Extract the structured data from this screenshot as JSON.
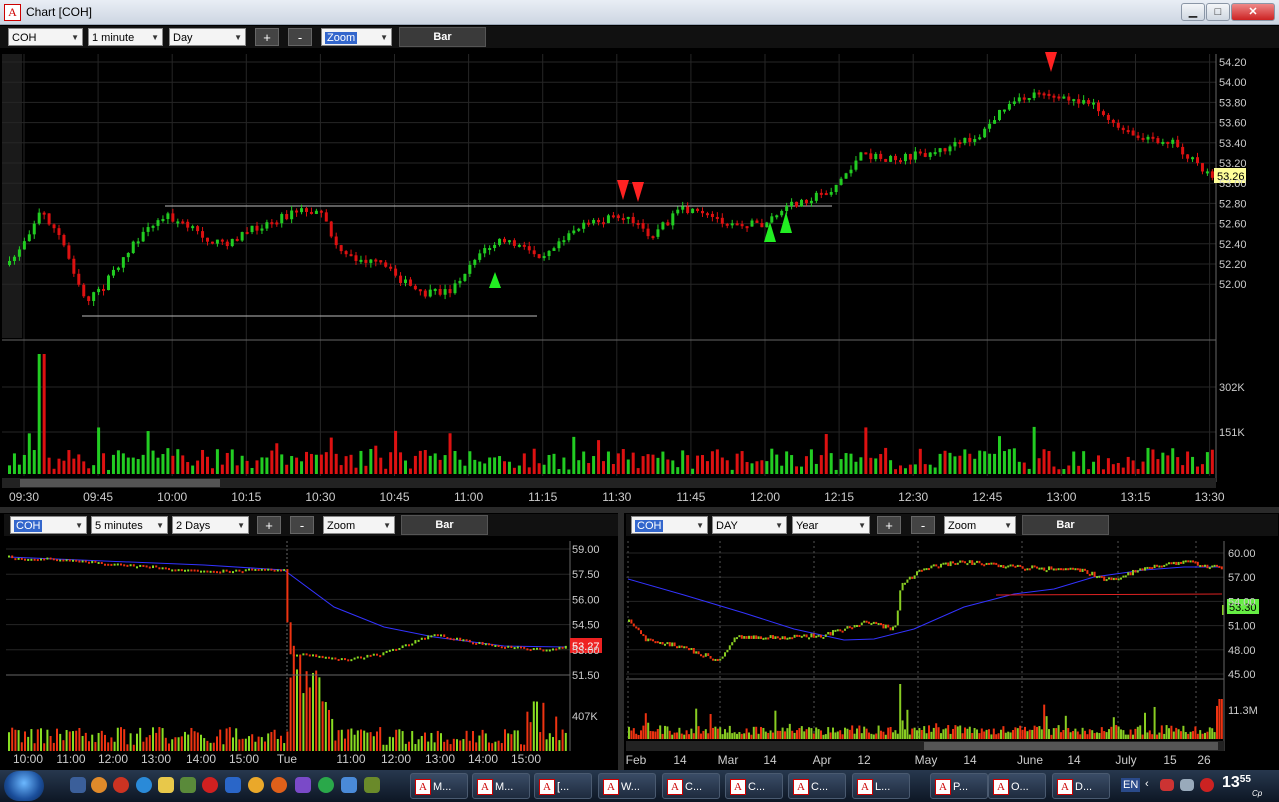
{
  "window": {
    "title": "Chart [COH]",
    "app_icon": "A",
    "btn_min": "▁",
    "btn_max": "□",
    "btn_close": "✕"
  },
  "main_chart": {
    "toolbar": {
      "symbol": "COH",
      "interval": "1 minute",
      "range": "Day",
      "plus": "+",
      "minus": "-",
      "zoom": "Zoom",
      "bar": "Bar"
    },
    "last_price": "53.26",
    "price_axis": [
      "54.20",
      "54.00",
      "53.80",
      "53.60",
      "53.40",
      "53.20",
      "53.00",
      "52.80",
      "52.60",
      "52.40",
      "52.20",
      "52.00"
    ],
    "volume_axis": [
      "302K",
      "151K"
    ],
    "time_axis": [
      "09:30",
      "09:45",
      "10:00",
      "10:15",
      "10:30",
      "10:45",
      "11:00",
      "11:15",
      "11:30",
      "11:45",
      "12:00",
      "12:15",
      "12:30",
      "12:45",
      "13:00",
      "13:15",
      "13:30"
    ]
  },
  "left_chart": {
    "toolbar": {
      "symbol": "COH",
      "interval": "5 minutes",
      "range": "2 Days",
      "plus": "+",
      "minus": "-",
      "zoom": "Zoom",
      "bar": "Bar"
    },
    "last_price": "53.27",
    "price_axis": [
      "59.00",
      "57.50",
      "56.00",
      "54.50",
      "53.00",
      "51.50"
    ],
    "volume_axis": [
      "407K"
    ],
    "time_axis": [
      "10:00",
      "11:00",
      "12:00",
      "13:00",
      "14:00",
      "15:00",
      "Tue",
      "11:00",
      "12:00",
      "13:00",
      "14:00",
      "15:00"
    ]
  },
  "right_chart": {
    "toolbar": {
      "symbol": "COH",
      "interval": "DAY",
      "range": "Year",
      "plus": "+",
      "minus": "-",
      "zoom": "Zoom",
      "bar": "Bar"
    },
    "last_price": "53.30",
    "price_axis": [
      "60.00",
      "57.00",
      "54.00",
      "51.00",
      "48.00",
      "45.00"
    ],
    "volume_axis": [
      "11.3M"
    ],
    "time_axis": [
      "Feb",
      "14",
      "Mar",
      "14",
      "Apr",
      "12",
      "May",
      "14",
      "June",
      "14",
      "July",
      "15",
      "26"
    ]
  },
  "taskbar": {
    "items": [
      "M...",
      "M...",
      "[...",
      "W...",
      "C...",
      "C...",
      "C...",
      "L...",
      "P...",
      "O...",
      "D..."
    ],
    "lang": "EN",
    "clock": "13",
    "clock_small": "55",
    "clock_sub": "Cp"
  },
  "colors": {
    "up": "#22cc22",
    "down": "#dd1111",
    "ma": "#2222ff",
    "grid": "#333333",
    "label_bg": "#ffff99"
  }
}
